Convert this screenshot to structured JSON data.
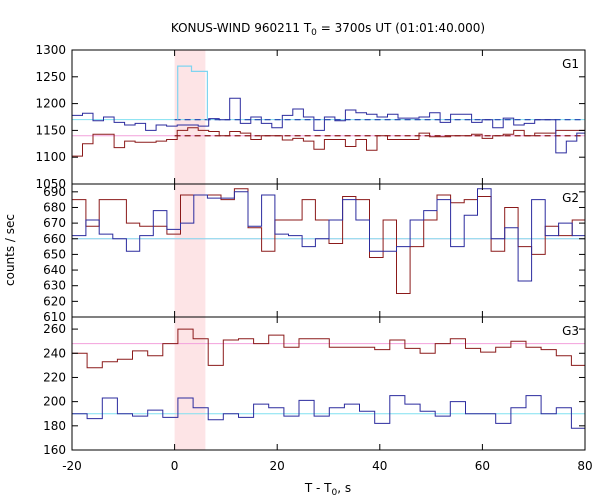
{
  "chart_data": {
    "type": "line",
    "title_main": "KONUS-WIND 960211 T",
    "title_sub": "0",
    "title_rest": " = 3700s UT (01:01:40.000)",
    "xlabel_main": "T - T",
    "xlabel_sub": "0",
    "xlabel_rest": ", s",
    "ylabel": "counts / sec",
    "xlim": [
      -20,
      80
    ],
    "xticks": [
      "-20",
      "0",
      "20",
      "40",
      "60",
      "80"
    ],
    "shaded_interval": [
      0,
      6
    ],
    "colors": {
      "red_series": "#8b1a1a",
      "blue_series": "#2b2b9e",
      "light_blue": "#7fd4f0",
      "dashed_red": "#8b1a1a",
      "dashed_blue": "#1f3fae",
      "pink_line": "#f2a0dc",
      "cyan_line": "#80e0f0",
      "shade": "#fde4e6"
    },
    "panels": [
      {
        "tag": "G1",
        "ylim": [
          1050,
          1300
        ],
        "yticks": [
          "1050",
          "1100",
          "1150",
          "1200",
          "1250",
          "1300"
        ],
        "steps_x": [
          -20,
          -17.95,
          -15.9,
          -13.85,
          -11.8,
          -9.75,
          -7.7,
          -5.65,
          -3.6,
          -1.55,
          0.5,
          2.55,
          4.6,
          6.65,
          8.7,
          10.75,
          12.8,
          14.85,
          16.9,
          18.95,
          21,
          23.05,
          25.1,
          27.15,
          29.2,
          31.25,
          33.3,
          35.35,
          37.4,
          39.45,
          41.5,
          43.55,
          45.6,
          47.65,
          49.7,
          51.75,
          53.8,
          55.85,
          57.9,
          59.95,
          62,
          64.05,
          66.1,
          68.15,
          70.2,
          72.25,
          74.3,
          76.35,
          78.4,
          80
        ],
        "red_values": [
          1102,
          1125,
          1143,
          1143,
          1118,
          1130,
          1128,
          1128,
          1130,
          1133,
          1150,
          1155,
          1150,
          1148,
          1140,
          1148,
          1145,
          1133,
          1140,
          1140,
          1132,
          1135,
          1130,
          1115,
          1133,
          1133,
          1120,
          1133,
          1113,
          1140,
          1133,
          1133,
          1133,
          1145,
          1138,
          1138,
          1140,
          1140,
          1143,
          1135,
          1140,
          1143,
          1150,
          1140,
          1145,
          1145,
          1150,
          1150,
          1150
        ],
        "blue_values": [
          1178,
          1182,
          1168,
          1175,
          1165,
          1160,
          1163,
          1150,
          1160,
          1158,
          1160,
          1160,
          1158,
          1172,
          1170,
          1210,
          1163,
          1175,
          1163,
          1155,
          1178,
          1190,
          1175,
          1150,
          1175,
          1168,
          1188,
          1183,
          1180,
          1175,
          1180,
          1173,
          1173,
          1175,
          1183,
          1165,
          1180,
          1180,
          1165,
          1170,
          1155,
          1173,
          1160,
          1163,
          1170,
          1170,
          1108,
          1130,
          1145
        ],
        "cyan_values_x": [
          0.6,
          3.3,
          6.4
        ],
        "cyan_values": [
          1270,
          1260
        ],
        "dashed_blue_level": 1170,
        "dashed_red_level": 1140,
        "cyan_level": 1170,
        "pink_level": 1140
      },
      {
        "tag": "G2",
        "ylim": [
          610,
          695
        ],
        "yticks": [
          "610",
          "620",
          "630",
          "640",
          "650",
          "660",
          "670",
          "680",
          "690"
        ],
        "steps_x": [
          -20,
          -17.3,
          -14.7,
          -12.05,
          -9.4,
          -6.8,
          -4.15,
          -1.5,
          1.15,
          3.75,
          6.4,
          9.05,
          11.65,
          14.3,
          16.95,
          19.55,
          22.2,
          24.85,
          27.45,
          30.1,
          32.75,
          35.35,
          38,
          40.65,
          43.25,
          45.9,
          48.55,
          51.15,
          53.8,
          56.45,
          59.05,
          61.7,
          64.35,
          66.95,
          69.6,
          72.25,
          74.85,
          77.5,
          80
        ],
        "red_values": [
          685,
          668,
          685,
          685,
          670,
          668,
          668,
          663,
          688,
          688,
          688,
          685,
          692,
          667,
          652,
          672,
          672,
          685,
          672,
          657,
          687,
          685,
          648,
          672,
          625,
          655,
          672,
          688,
          683,
          685,
          687,
          652,
          680,
          655,
          650,
          668,
          662,
          672,
          652
        ],
        "blue_values": [
          662,
          672,
          663,
          660,
          652,
          662,
          678,
          666,
          670,
          688,
          686,
          686,
          690,
          668,
          688,
          663,
          662,
          655,
          660,
          672,
          685,
          672,
          652,
          652,
          655,
          672,
          678,
          685,
          655,
          675,
          692,
          660,
          667,
          633,
          685,
          662,
          670,
          662,
          692
        ],
        "cyan_level": 660,
        "pink_level": 660
      },
      {
        "tag": "G3",
        "ylim": [
          160,
          270
        ],
        "yticks": [
          "160",
          "180",
          "200",
          "220",
          "240",
          "260"
        ],
        "steps_x": [
          -20,
          -17.05,
          -14.1,
          -11.15,
          -8.2,
          -5.25,
          -2.3,
          0.65,
          3.6,
          6.55,
          9.5,
          12.45,
          15.4,
          18.35,
          21.3,
          24.25,
          27.2,
          30.15,
          33.1,
          36.05,
          39,
          41.95,
          44.9,
          47.85,
          50.8,
          53.75,
          56.7,
          59.65,
          62.6,
          65.55,
          68.5,
          71.45,
          74.4,
          77.35,
          80
        ],
        "red_values": [
          240,
          228,
          233,
          235,
          242,
          238,
          248,
          260,
          252,
          230,
          251,
          252,
          248,
          255,
          245,
          252,
          252,
          245,
          245,
          245,
          243,
          251,
          244,
          240,
          248,
          252,
          244,
          241,
          245,
          250,
          245,
          243,
          238,
          230,
          245
        ],
        "blue_values": [
          190,
          186,
          203,
          190,
          188,
          193,
          187,
          203,
          195,
          185,
          190,
          187,
          198,
          195,
          188,
          201,
          188,
          195,
          198,
          192,
          182,
          205,
          198,
          192,
          188,
          200,
          190,
          190,
          182,
          195,
          205,
          190,
          195,
          178,
          188
        ],
        "cyan_level": 190,
        "pink_level": 248
      }
    ]
  }
}
